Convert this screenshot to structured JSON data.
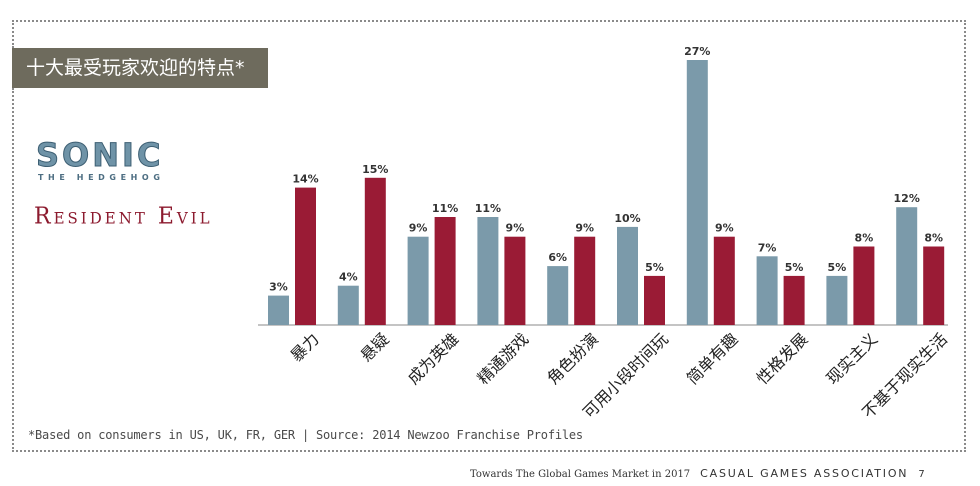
{
  "title": "十大最受玩家欢迎的特点*",
  "logos": {
    "sonic_main": "SONIC",
    "sonic_sub": "THE HEDGEHOG",
    "resident_evil": "Resident Evil"
  },
  "footnote": "*Based on consumers in US, UK, FR, GER | Source: 2014 Newzoo Franchise Profiles",
  "footer": {
    "text": "Towards The Global Games Market in 2017",
    "org": "CASUAL GAMES ASSOCIATION",
    "page": "7"
  },
  "colors": {
    "sonic": "#7b9aaa",
    "resident_evil": "#9a1b35",
    "title_bg": "#6e6b5d"
  },
  "chart_data": {
    "type": "bar",
    "title": "十大最受玩家欢迎的特点*",
    "xlabel": "",
    "ylabel": "",
    "ylim": [
      0,
      27
    ],
    "grid": false,
    "categories": [
      "暴力",
      "悬疑",
      "成为英雄",
      "精通游戏",
      "角色扮演",
      "可用小段时间玩",
      "简单有趣",
      "性格发展",
      "现实主义",
      "不基于现实生活"
    ],
    "series": [
      {
        "name": "Sonic the Hedgehog",
        "color": "#7b9aaa",
        "values": [
          3,
          4,
          9,
          11,
          6,
          10,
          27,
          7,
          5,
          12
        ],
        "labels": [
          "3%",
          "4%",
          "9%",
          "11%",
          "6%",
          "10%",
          "27%",
          "7%",
          "5%",
          "12%"
        ]
      },
      {
        "name": "Resident Evil",
        "color": "#9a1b35",
        "values": [
          14,
          15,
          11,
          9,
          9,
          5,
          9,
          5,
          8,
          8
        ],
        "labels": [
          "14%",
          "15%",
          "11%",
          "9%",
          "9%",
          "5%",
          "9%",
          "5%",
          "8%",
          "8%"
        ]
      }
    ]
  }
}
